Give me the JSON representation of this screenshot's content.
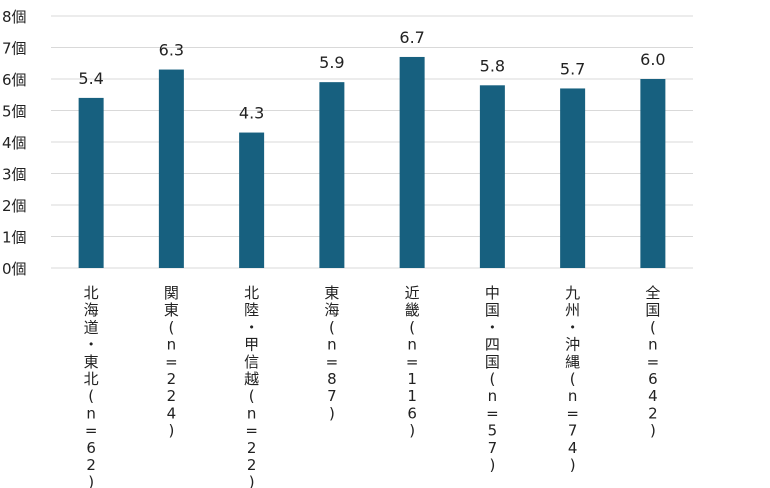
{
  "chart_data": {
    "type": "bar",
    "title": "",
    "xlabel": "",
    "ylabel": "",
    "ylim": [
      0,
      8
    ],
    "yticks": [
      0,
      1,
      2,
      3,
      4,
      5,
      6,
      7,
      8
    ],
    "ytick_suffix": "個",
    "grid": true,
    "legend": "none",
    "bar_color": "#17607f",
    "categories": [
      "北海道・東北(n=62)",
      "関東(n=224)",
      "北陸・甲信越(n=22)",
      "東海(n=87)",
      "近畿(n=116)",
      "中国・四国(n=57)",
      "九州・沖縄(n=74)",
      "全国(n=642)"
    ],
    "values": [
      5.4,
      6.3,
      4.3,
      5.9,
      6.7,
      5.8,
      5.7,
      6.0
    ],
    "data_labels": [
      "5.4",
      "6.3",
      "4.3",
      "5.9",
      "6.7",
      "5.8",
      "5.7",
      "6.0"
    ]
  }
}
